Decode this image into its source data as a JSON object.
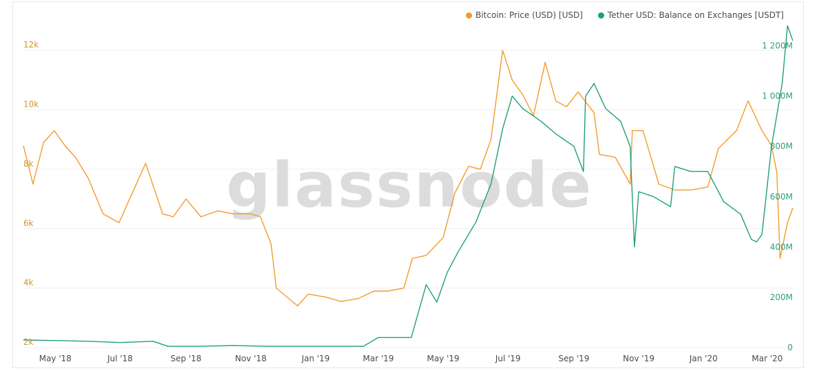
{
  "legend": {
    "items": [
      {
        "label": "Bitcoin: Price (USD) [USD]",
        "color": "#f29b2b"
      },
      {
        "label": "Tether USD: Balance on Exchanges [USDT]",
        "color": "#1f9e7a"
      }
    ]
  },
  "watermark": "glassnode",
  "chart_data": {
    "type": "line",
    "x_start": "2018-04-01",
    "x_end": "2020-03-25",
    "x_ticks": [
      "May '18",
      "Jul '18",
      "Sep '18",
      "Nov '18",
      "Jan '19",
      "Mar '19",
      "May '19",
      "Jul '19",
      "Sep '19",
      "Nov '19",
      "Jan '20",
      "Mar '20"
    ],
    "y_left": {
      "ticks": [
        "2k",
        "4k",
        "6k",
        "8k",
        "10k",
        "12k"
      ],
      "range": [
        2000,
        13000
      ]
    },
    "y_right": {
      "ticks": [
        "0",
        "200M",
        "400M",
        "600M",
        "800M",
        "1 000M",
        "1 200M"
      ],
      "range": [
        0,
        1300
      ]
    },
    "grid": true,
    "legend_position": "top-right",
    "series": [
      {
        "name": "Bitcoin: Price (USD) [USD]",
        "axis": "left",
        "color": "#f29b2b",
        "x": [
          "2018-04-01",
          "2018-04-10",
          "2018-04-20",
          "2018-04-30",
          "2018-05-10",
          "2018-05-20",
          "2018-06-01",
          "2018-06-15",
          "2018-06-30",
          "2018-07-15",
          "2018-07-25",
          "2018-08-10",
          "2018-08-20",
          "2018-09-01",
          "2018-09-15",
          "2018-10-01",
          "2018-10-15",
          "2018-11-01",
          "2018-11-10",
          "2018-11-20",
          "2018-11-25",
          "2018-12-05",
          "2018-12-15",
          "2018-12-25",
          "2019-01-10",
          "2019-01-25",
          "2019-02-10",
          "2019-02-25",
          "2019-03-10",
          "2019-03-25",
          "2019-04-02",
          "2019-04-15",
          "2019-05-01",
          "2019-05-12",
          "2019-05-25",
          "2019-06-05",
          "2019-06-15",
          "2019-06-26",
          "2019-07-05",
          "2019-07-15",
          "2019-07-25",
          "2019-08-05",
          "2019-08-15",
          "2019-08-25",
          "2019-09-05",
          "2019-09-20",
          "2019-09-25",
          "2019-10-10",
          "2019-10-24",
          "2019-10-26",
          "2019-11-05",
          "2019-11-20",
          "2019-12-05",
          "2019-12-20",
          "2020-01-05",
          "2020-01-15",
          "2020-02-01",
          "2020-02-12",
          "2020-02-25",
          "2020-03-05",
          "2020-03-10",
          "2020-03-13",
          "2020-03-20",
          "2020-03-25"
        ],
        "values": [
          8800,
          7500,
          8900,
          9300,
          8800,
          8400,
          7700,
          6500,
          6200,
          7400,
          8200,
          6500,
          6400,
          7000,
          6400,
          6600,
          6500,
          6500,
          6400,
          5500,
          4000,
          3700,
          3400,
          3800,
          3700,
          3550,
          3650,
          3900,
          3900,
          4000,
          5000,
          5100,
          5700,
          7200,
          8100,
          8000,
          9000,
          12000,
          11000,
          10500,
          9800,
          11600,
          10300,
          10100,
          10600,
          9900,
          8500,
          8400,
          7500,
          9300,
          9300,
          7500,
          7300,
          7300,
          7400,
          8700,
          9300,
          10300,
          9300,
          8800,
          7900,
          5000,
          6200,
          6700
        ]
      },
      {
        "name": "Tether USD: Balance on Exchanges [USDT]",
        "axis": "right",
        "color": "#1f9e7a",
        "x": [
          "2018-04-01",
          "2018-05-01",
          "2018-06-01",
          "2018-07-01",
          "2018-08-01",
          "2018-08-15",
          "2018-09-15",
          "2018-10-15",
          "2018-11-15",
          "2018-12-15",
          "2019-01-15",
          "2019-02-15",
          "2019-03-01",
          "2019-03-15",
          "2019-04-01",
          "2019-04-15",
          "2019-04-25",
          "2019-05-05",
          "2019-05-15",
          "2019-06-01",
          "2019-06-15",
          "2019-06-26",
          "2019-07-05",
          "2019-07-15",
          "2019-08-01",
          "2019-08-15",
          "2019-09-01",
          "2019-09-10",
          "2019-09-12",
          "2019-09-20",
          "2019-10-01",
          "2019-10-15",
          "2019-10-24",
          "2019-10-28",
          "2019-11-01",
          "2019-11-15",
          "2019-12-01",
          "2019-12-05",
          "2019-12-20",
          "2020-01-05",
          "2020-01-20",
          "2020-02-05",
          "2020-02-15",
          "2020-02-20",
          "2020-02-25",
          "2020-03-05",
          "2020-03-15",
          "2020-03-20",
          "2020-03-25"
        ],
        "values": [
          30,
          28,
          25,
          20,
          25,
          5,
          5,
          8,
          5,
          5,
          5,
          5,
          40,
          40,
          40,
          250,
          180,
          300,
          380,
          500,
          650,
          870,
          1000,
          950,
          900,
          850,
          800,
          700,
          1000,
          1050,
          950,
          900,
          800,
          400,
          620,
          600,
          560,
          720,
          700,
          700,
          580,
          530,
          430,
          420,
          450,
          800,
          1050,
          1280,
          1220
        ]
      }
    ]
  }
}
